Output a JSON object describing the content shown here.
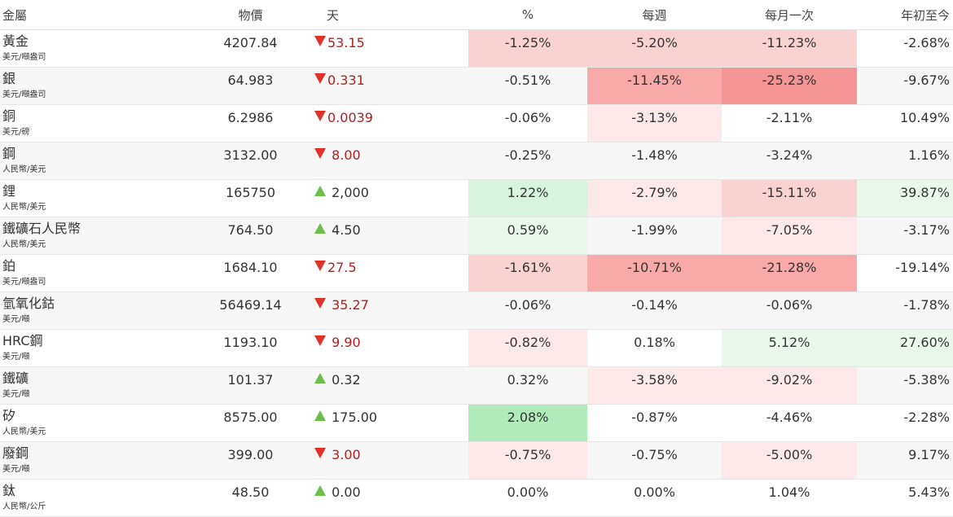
{
  "headers": {
    "name": "金屬",
    "price": "物價",
    "day": "天",
    "pct": "%",
    "week": "每週",
    "month": "每月一次",
    "ytd": "年初至今"
  },
  "colors": {
    "neg1": "#fde9e9",
    "neg2": "#fbd2d2",
    "neg3": "#f8a9a9",
    "neg4": "#f49595",
    "pos1": "#eaf8ec",
    "pos2": "#d9f4de",
    "pos3": "#b0ecbc",
    "down_arrow": "#e0312b",
    "up_arrow": "#6cbf4a",
    "down_text": "#b71c1c"
  },
  "rows": [
    {
      "name": "黃金",
      "unit": "美元/噸盎司",
      "price": "4207.84",
      "dir": "down",
      "change": "53.15",
      "pct": "-1.25%",
      "pct_bg": "neg2",
      "week": "-5.20%",
      "week_bg": "neg2",
      "month": "-11.23%",
      "month_bg": "neg2",
      "ytd": "-2.68%",
      "ytd_bg": ""
    },
    {
      "name": "銀",
      "unit": "美元/噸盎司",
      "price": "64.983",
      "dir": "down",
      "change": "0.331",
      "pct": "-0.51%",
      "pct_bg": "",
      "week": "-11.45%",
      "week_bg": "neg3",
      "month": "-25.23%",
      "month_bg": "neg4",
      "ytd": "-9.67%",
      "ytd_bg": ""
    },
    {
      "name": "銅",
      "unit": "美元/磅",
      "price": "6.2986",
      "dir": "down",
      "change": "0.0039",
      "pct": "-0.06%",
      "pct_bg": "",
      "week": "-3.13%",
      "week_bg": "neg1",
      "month": "-2.11%",
      "month_bg": "",
      "ytd": "10.49%",
      "ytd_bg": ""
    },
    {
      "name": "鋼",
      "unit": "人民幣/美元",
      "price": "3132.00",
      "dir": "down",
      "change": " 8.00",
      "pct": "-0.25%",
      "pct_bg": "",
      "week": "-1.48%",
      "week_bg": "",
      "month": "-3.24%",
      "month_bg": "",
      "ytd": "1.16%",
      "ytd_bg": ""
    },
    {
      "name": "鋰",
      "unit": "人民幣/美元",
      "price": "165750",
      "dir": "up",
      "change": " 2,000",
      "pct": "1.22%",
      "pct_bg": "pos2",
      "week": "-2.79%",
      "week_bg": "neg1",
      "month": "-15.11%",
      "month_bg": "neg2",
      "ytd": "39.87%",
      "ytd_bg": "pos1"
    },
    {
      "name": "鐵礦石人民幣",
      "unit": "人民幣/美元",
      "price": "764.50",
      "dir": "up",
      "change": " 4.50",
      "pct": "0.59%",
      "pct_bg": "pos1",
      "week": "-1.99%",
      "week_bg": "",
      "month": "-7.05%",
      "month_bg": "neg1",
      "ytd": "-3.17%",
      "ytd_bg": ""
    },
    {
      "name": "鉑",
      "unit": "美元/噸盎司",
      "price": "1684.10",
      "dir": "down",
      "change": "27.5",
      "pct": "-1.61%",
      "pct_bg": "neg2",
      "week": "-10.71%",
      "week_bg": "neg3",
      "month": "-21.28%",
      "month_bg": "neg3",
      "ytd": "-19.14%",
      "ytd_bg": ""
    },
    {
      "name": "氫氧化鈷",
      "unit": "美元/噸",
      "price": "56469.14",
      "dir": "down",
      "change": " 35.27",
      "pct": "-0.06%",
      "pct_bg": "",
      "week": "-0.14%",
      "week_bg": "",
      "month": "-0.06%",
      "month_bg": "",
      "ytd": "-1.78%",
      "ytd_bg": ""
    },
    {
      "name": "HRC鋼",
      "unit": "美元/噸",
      "price": "1193.10",
      "dir": "down",
      "change": " 9.90",
      "pct": "-0.82%",
      "pct_bg": "neg1",
      "week": "0.18%",
      "week_bg": "",
      "month": "5.12%",
      "month_bg": "pos1",
      "ytd": "27.60%",
      "ytd_bg": "pos1"
    },
    {
      "name": "鐵礦",
      "unit": "美元/噸",
      "price": "101.37",
      "dir": "up",
      "change": " 0.32",
      "pct": "0.32%",
      "pct_bg": "",
      "week": "-3.58%",
      "week_bg": "neg1",
      "month": "-9.02%",
      "month_bg": "neg1",
      "ytd": "-5.38%",
      "ytd_bg": ""
    },
    {
      "name": "矽",
      "unit": "人民幣/美元",
      "price": "8575.00",
      "dir": "up",
      "change": " 175.00",
      "pct": "2.08%",
      "pct_bg": "pos3",
      "week": "-0.87%",
      "week_bg": "",
      "month": "-4.46%",
      "month_bg": "",
      "ytd": "-2.28%",
      "ytd_bg": ""
    },
    {
      "name": "廢鋼",
      "unit": "美元/噸",
      "price": "399.00",
      "dir": "down",
      "change": " 3.00",
      "pct": "-0.75%",
      "pct_bg": "neg1",
      "week": "-0.75%",
      "week_bg": "",
      "month": "-5.00%",
      "month_bg": "neg1",
      "ytd": "9.17%",
      "ytd_bg": ""
    },
    {
      "name": "鈦",
      "unit": "人民幣/公斤",
      "price": "48.50",
      "dir": "up",
      "change": " 0.00",
      "pct": "0.00%",
      "pct_bg": "",
      "week": "0.00%",
      "week_bg": "",
      "month": "1.04%",
      "month_bg": "",
      "ytd": "5.43%",
      "ytd_bg": ""
    }
  ]
}
